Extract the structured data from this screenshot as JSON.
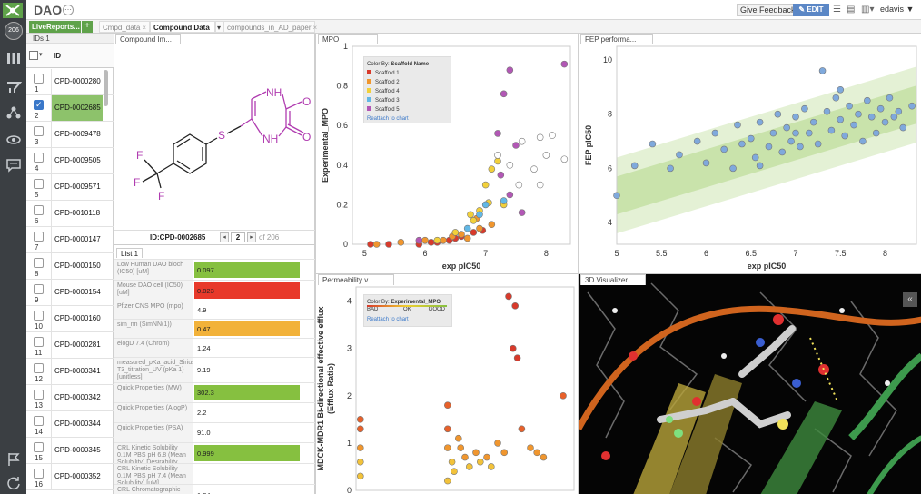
{
  "header": {
    "project_title": "DAO",
    "feedback_label": "Give Feedback",
    "edit_label": "EDIT",
    "user_label": "edavis ▼",
    "badge_count": "206"
  },
  "tabs": [
    {
      "label": "LiveReports...",
      "active": false
    },
    {
      "label": "Cmpd_data",
      "active": false
    },
    {
      "label": "Compound Data",
      "active": true
    },
    {
      "label": "compounds_in_AD_paper",
      "active": false
    }
  ],
  "compound_list": {
    "header": "IDs 1",
    "column": "ID",
    "rows": [
      {
        "num": "1",
        "id": "CPD-0000280",
        "selected": false
      },
      {
        "num": "2",
        "id": "CPD-0002685",
        "selected": true
      },
      {
        "num": "3",
        "id": "CPD-0009478",
        "selected": false
      },
      {
        "num": "4",
        "id": "CPD-0009505",
        "selected": false
      },
      {
        "num": "5",
        "id": "CPD-0009571",
        "selected": false
      },
      {
        "num": "6",
        "id": "CPD-0010118",
        "selected": false
      },
      {
        "num": "7",
        "id": "CPD-0000147",
        "selected": false
      },
      {
        "num": "8",
        "id": "CPD-0000150",
        "selected": false
      },
      {
        "num": "9",
        "id": "CPD-0000154",
        "selected": false
      },
      {
        "num": "10",
        "id": "CPD-0000160",
        "selected": false
      },
      {
        "num": "11",
        "id": "CPD-0000281",
        "selected": false
      },
      {
        "num": "12",
        "id": "CPD-0000341",
        "selected": false
      },
      {
        "num": "13",
        "id": "CPD-0000342",
        "selected": false
      },
      {
        "num": "14",
        "id": "CPD-0000344",
        "selected": false
      },
      {
        "num": "15",
        "id": "CPD-0000345",
        "selected": false
      },
      {
        "num": "16",
        "id": "CPD-0000352",
        "selected": false
      }
    ]
  },
  "compound_image": {
    "panel_title": "Compound Im...",
    "id_label": "ID:CPD-0002685",
    "page": "2",
    "page_of": "of 206",
    "atom_nh_top": "NH",
    "atom_o_top": "O",
    "atom_nh_bottom": "NH",
    "atom_o_bottom": "O",
    "atom_s": "S",
    "atom_f1": "F",
    "atom_f2": "F",
    "atom_f3": "F"
  },
  "properties": {
    "tab_label": "List 1",
    "items": [
      {
        "name": "Low Human DAO bioch (IC50) [uM]",
        "value": "0.097",
        "color": "#86c040",
        "h": 23
      },
      {
        "name": "Mouse DAO cell (IC50) [uM]",
        "value": "0.023",
        "color": "#e8392a",
        "h": 23
      },
      {
        "name": "Pfizer CNS MPO (mpo)",
        "value": "4.9",
        "color": "",
        "h": 20
      },
      {
        "name": "sim_nn (SimNN(1))",
        "value": "0.47",
        "color": "#f2b23a",
        "h": 21
      },
      {
        "name": "elogD 7.4 (Chrom)",
        "value": "1.24",
        "color": "",
        "h": 21
      },
      {
        "name": "measured_pKa_acid_Sirius T3_titration_UV (pKa 1) [unitless]",
        "value": "9.19",
        "color": "",
        "h": 28
      },
      {
        "name": "Quick Properties (MW)",
        "value": "302.3",
        "color": "#86c040",
        "h": 22
      },
      {
        "name": "Quick Properties (AlogP)",
        "value": "2.2",
        "color": "",
        "h": 22
      },
      {
        "name": "Quick Properties (PSA)",
        "value": "91.0",
        "color": "",
        "h": 22
      },
      {
        "name": "CRL Kinetic Solubility 0.1M PBS pH 6.8 (Mean Solubility) Desirability",
        "value": "0.999",
        "color": "#86c040",
        "h": 23
      },
      {
        "name": "CRL Kinetic Solubility 0.1M PBS pH 7.4 (Mean Solubility) [uM]",
        "value": "",
        "color": "",
        "h": 23
      },
      {
        "name": "CRL Chromatographic logD 7.4 (Chrom logD)",
        "value": "1.24",
        "color": "",
        "h": 23
      }
    ]
  },
  "mpo_chart": {
    "panel_title": "MPO",
    "legend_title": "Color By:",
    "legend_field": "Scaffold Name",
    "legend_items": [
      {
        "label": "Scaffold 1",
        "color": "#d83a2b"
      },
      {
        "label": "Scaffold 2",
        "color": "#f0962e"
      },
      {
        "label": "Scaffold 4",
        "color": "#f2d03a"
      },
      {
        "label": "Scaffold 3",
        "color": "#62b8e6"
      },
      {
        "label": "Scaffold 5",
        "color": "#b257b5"
      }
    ],
    "reattach": "Reattach to chart"
  },
  "fep_chart": {
    "panel_title": "FEP performa..."
  },
  "perm_chart": {
    "panel_title": "Permeability v...",
    "legend_title": "Color By:",
    "legend_field": "Experimental_MPO",
    "bad": "BAD",
    "ok": "OK",
    "good": "GOOD",
    "reattach": "Reattach to chart"
  },
  "viz": {
    "panel_title": "3D Visualizer ...",
    "collapse": "«"
  },
  "chart_data": [
    {
      "type": "scatter",
      "title": "",
      "xlabel": "exp pIC50",
      "ylabel": "Experimental_MPO",
      "xlim": [
        4.8,
        8.4
      ],
      "ylim": [
        0,
        1
      ],
      "xticks": [
        5,
        6,
        7,
        8
      ],
      "yticks": [
        0,
        0.2,
        0.4,
        0.6,
        0.8,
        1
      ],
      "series": [
        {
          "name": "Scaffold 1",
          "color": "#d83a2b",
          "points": [
            [
              5.1,
              0
            ],
            [
              5.4,
              0
            ],
            [
              5.9,
              0
            ],
            [
              6.1,
              0.01
            ],
            [
              6.4,
              0.02
            ],
            [
              6.6,
              0.04
            ],
            [
              6.8,
              0.06
            ],
            [
              6.2,
              0.01
            ],
            [
              6.5,
              0.03
            ],
            [
              6.95,
              0.07
            ]
          ]
        },
        {
          "name": "Scaffold 2",
          "color": "#f0962e",
          "points": [
            [
              5.2,
              0
            ],
            [
              5.6,
              0.01
            ],
            [
              6.0,
              0.02
            ],
            [
              6.3,
              0.02
            ],
            [
              6.6,
              0.05
            ],
            [
              6.7,
              0.03
            ],
            [
              6.9,
              0.08
            ],
            [
              7.1,
              0.1
            ],
            [
              6.45,
              0.04
            ],
            [
              6.85,
              0.13
            ]
          ]
        },
        {
          "name": "Scaffold 4",
          "color": "#f2d03a",
          "points": [
            [
              6.2,
              0.02
            ],
            [
              6.5,
              0.06
            ],
            [
              6.8,
              0.12
            ],
            [
              6.9,
              0.17
            ],
            [
              7.0,
              0.3
            ],
            [
              7.1,
              0.38
            ],
            [
              7.2,
              0.42
            ],
            [
              6.75,
              0.15
            ],
            [
              7.3,
              0.2
            ],
            [
              7.05,
              0.21
            ]
          ]
        },
        {
          "name": "Scaffold 3",
          "color": "#62b8e6",
          "points": [
            [
              6.7,
              0.08
            ],
            [
              6.9,
              0.15
            ],
            [
              7.0,
              0.2
            ],
            [
              7.3,
              0.22
            ]
          ]
        },
        {
          "name": "Scaffold 5",
          "color": "#b257b5",
          "points": [
            [
              7.4,
              0.88
            ],
            [
              7.3,
              0.76
            ],
            [
              8.3,
              0.91
            ],
            [
              7.2,
              0.56
            ],
            [
              7.5,
              0.5
            ],
            [
              7.4,
              0.25
            ],
            [
              5.9,
              0.02
            ],
            [
              7.25,
              0.35
            ],
            [
              7.6,
              0.16
            ]
          ]
        },
        {
          "name": "",
          "color": "#ffffff",
          "points": [
            [
              7.6,
              0.52
            ],
            [
              7.9,
              0.54
            ],
            [
              8.1,
              0.55
            ],
            [
              7.8,
              0.38
            ],
            [
              8.0,
              0.45
            ],
            [
              7.2,
              0.45
            ],
            [
              7.4,
              0.4
            ],
            [
              7.55,
              0.3
            ],
            [
              7.9,
              0.3
            ],
            [
              8.3,
              0.43
            ]
          ]
        }
      ]
    },
    {
      "type": "scatter",
      "title": "",
      "xlabel": "exp pIC50",
      "ylabel": "FEP pIC50",
      "xlim": [
        5,
        8.35
      ],
      "ylim": [
        3.2,
        10.5
      ],
      "xticks": [
        5,
        5.5,
        6,
        6.5,
        7,
        7.5,
        8
      ],
      "yticks": [
        4,
        6,
        8,
        10
      ],
      "series": [
        {
          "name": "",
          "color": "#7fa9dc",
          "points": [
            [
              5.0,
              5.0
            ],
            [
              5.2,
              6.1
            ],
            [
              5.4,
              6.9
            ],
            [
              5.6,
              6.0
            ],
            [
              5.7,
              6.5
            ],
            [
              5.9,
              7.0
            ],
            [
              6.0,
              6.2
            ],
            [
              6.1,
              7.3
            ],
            [
              6.2,
              6.7
            ],
            [
              6.3,
              6.0
            ],
            [
              6.35,
              7.6
            ],
            [
              6.4,
              6.9
            ],
            [
              6.5,
              7.1
            ],
            [
              6.55,
              6.4
            ],
            [
              6.6,
              7.7
            ],
            [
              6.7,
              6.8
            ],
            [
              6.75,
              7.3
            ],
            [
              6.8,
              8.0
            ],
            [
              6.85,
              6.6
            ],
            [
              6.9,
              7.5
            ],
            [
              6.95,
              7.0
            ],
            [
              7.0,
              7.9
            ],
            [
              7.05,
              6.8
            ],
            [
              7.1,
              8.2
            ],
            [
              7.15,
              7.3
            ],
            [
              7.2,
              7.7
            ],
            [
              7.25,
              6.9
            ],
            [
              7.3,
              9.6
            ],
            [
              7.35,
              8.1
            ],
            [
              7.4,
              7.4
            ],
            [
              7.45,
              8.6
            ],
            [
              7.5,
              7.8
            ],
            [
              7.55,
              7.2
            ],
            [
              7.6,
              8.3
            ],
            [
              7.65,
              7.6
            ],
            [
              7.7,
              8.0
            ],
            [
              7.75,
              7.0
            ],
            [
              7.8,
              8.5
            ],
            [
              7.85,
              7.9
            ],
            [
              7.9,
              7.3
            ],
            [
              7.95,
              8.2
            ],
            [
              8.0,
              7.7
            ],
            [
              8.05,
              8.6
            ],
            [
              8.1,
              7.9
            ],
            [
              8.2,
              7.5
            ],
            [
              8.3,
              8.3
            ],
            [
              8.15,
              8.1
            ],
            [
              7.5,
              8.9
            ],
            [
              7.0,
              7.3
            ],
            [
              6.6,
              6.1
            ]
          ]
        }
      ]
    },
    {
      "type": "scatter",
      "title": "",
      "xlabel": "",
      "ylabel": "MDCK-MDR1 Bi-directional effective efflux (Efflux Ratio)",
      "xlim": [
        0,
        1
      ],
      "ylim": [
        0,
        4.3
      ],
      "yticks": [
        0,
        1,
        2,
        3,
        4
      ],
      "series": [
        {
          "name": "",
          "color": "#e05a2a",
          "points": [
            [
              0.02,
              1.5
            ],
            [
              0.02,
              1.3
            ],
            [
              0.02,
              0.9
            ],
            [
              0.02,
              0.6
            ],
            [
              0.02,
              0.3
            ],
            [
              0.42,
              1.8
            ],
            [
              0.42,
              1.3
            ],
            [
              0.42,
              0.9
            ],
            [
              0.44,
              0.6
            ],
            [
              0.45,
              0.4
            ],
            [
              0.48,
              0.9
            ],
            [
              0.5,
              0.7
            ],
            [
              0.52,
              0.5
            ],
            [
              0.55,
              0.8
            ],
            [
              0.57,
              0.6
            ],
            [
              0.6,
              0.7
            ],
            [
              0.62,
              0.5
            ],
            [
              0.65,
              1.0
            ],
            [
              0.68,
              0.8
            ],
            [
              0.7,
              4.1
            ],
            [
              0.72,
              3.0
            ],
            [
              0.73,
              3.9
            ],
            [
              0.74,
              2.8
            ],
            [
              0.76,
              1.3
            ],
            [
              0.8,
              0.9
            ],
            [
              0.83,
              0.8
            ],
            [
              0.86,
              0.7
            ],
            [
              0.95,
              2.0
            ],
            [
              0.42,
              0.2
            ],
            [
              0.47,
              1.1
            ]
          ]
        }
      ]
    }
  ]
}
